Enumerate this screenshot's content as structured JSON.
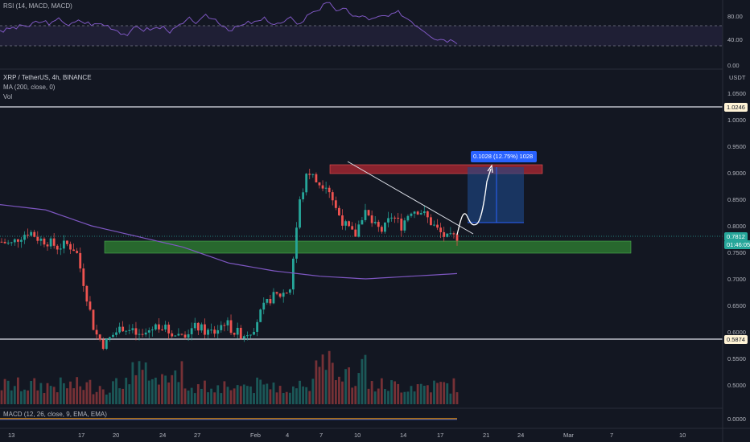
{
  "rsi_panel": {
    "label": "RSI (14, MACD, MACD)",
    "scale": [
      "80.00",
      "40.00",
      "0.00"
    ]
  },
  "main_panel": {
    "symbol_line": "XRP / TetherUS, 4h, BINANCE",
    "ma_line": "MA (200, close, 0)",
    "vol_line": "Vol",
    "currency": "USDT",
    "price_scale": [
      "1.0500",
      "1.0000",
      "0.9500",
      "0.9000",
      "0.8500",
      "0.8000",
      "0.7500",
      "0.7000",
      "0.6500",
      "0.6000",
      "0.5500",
      "0.5000"
    ],
    "upper_level": "1.0246",
    "lower_level": "0.5874",
    "current_price": "0.7812",
    "countdown": "01:46:05",
    "measure_label": "0.1028 (12.75%) 1028",
    "colors": {
      "bg": "#131722",
      "up": "#26a69a",
      "down": "#ef5350",
      "ma": "#7e57c2",
      "resistance": "#b22833",
      "support": "#2e7d32",
      "target_box": "#1e4a8c",
      "measure": "#2962ff"
    }
  },
  "macd_panel": {
    "label": "MACD (12, 26, close, 9, EMA, EMA)",
    "scale": [
      "0.0000"
    ]
  },
  "time_axis": [
    "13",
    "17",
    "20",
    "24",
    "27",
    "Feb",
    "4",
    "7",
    "10",
    "14",
    "17",
    "21",
    "24",
    "Mar",
    "7",
    "10"
  ],
  "chart_data": {
    "type": "candlestick",
    "series_ohlc_close_path": [
      0.77,
      0.765,
      0.78,
      0.79,
      0.775,
      0.77,
      0.76,
      0.765,
      0.755,
      0.68,
      0.6,
      0.575,
      0.595,
      0.61,
      0.6,
      0.59,
      0.605,
      0.615,
      0.6,
      0.595,
      0.6,
      0.61,
      0.6,
      0.6,
      0.62,
      0.6,
      0.595,
      0.605,
      0.64,
      0.665,
      0.67,
      0.68,
      0.84,
      0.905,
      0.88,
      0.88,
      0.83,
      0.8,
      0.78,
      0.83,
      0.8,
      0.79,
      0.82,
      0.8,
      0.83,
      0.83,
      0.81,
      0.79,
      0.775,
      0.78
    ],
    "ma200_path": [
      0.84,
      0.83,
      0.8,
      0.78,
      0.76,
      0.73,
      0.715,
      0.705,
      0.7,
      0.705,
      0.71
    ],
    "levels": [
      1.0246,
      0.5874
    ],
    "resistance_zone": [
      0.905,
      0.915
    ],
    "support_zone": [
      0.755,
      0.775
    ],
    "target_zone": [
      0.807,
      0.91
    ],
    "measure": "0.1028 (12.75%)",
    "ylim": [
      0.48,
      1.08
    ]
  }
}
